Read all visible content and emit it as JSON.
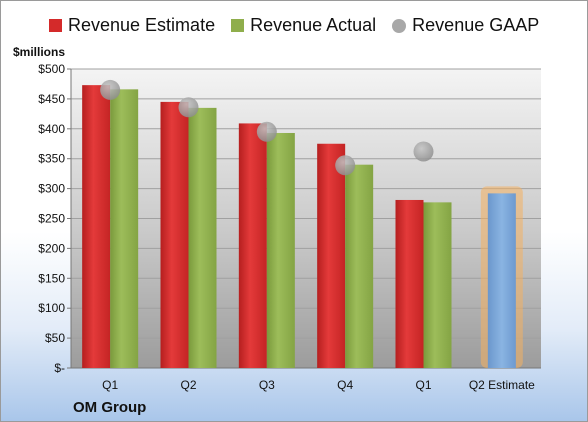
{
  "chart_data": {
    "type": "bar",
    "categories": [
      "Q1",
      "Q2",
      "Q3",
      "Q4",
      "Q1",
      "Q2 Estimate"
    ],
    "series": [
      {
        "name": "Revenue Estimate",
        "type": "bar",
        "values": [
          473,
          445,
          409,
          375,
          281,
          null
        ],
        "color": "#d42a2a"
      },
      {
        "name": "Revenue Actual",
        "type": "bar",
        "values": [
          466,
          435,
          393,
          340,
          277,
          292
        ],
        "color": "#8fae4c"
      },
      {
        "name": "Revenue GAAP",
        "type": "scatter",
        "values": [
          465,
          436,
          395,
          339,
          362,
          null
        ],
        "color": "#a8a8a8"
      }
    ],
    "highlight": {
      "category": "Q2 Estimate",
      "value": 292,
      "color": "#7aa6d6",
      "glow": "#f4b060"
    },
    "ylabel": "$millions",
    "ylim": [
      0,
      500
    ],
    "yticks": [
      0,
      50,
      100,
      150,
      200,
      250,
      300,
      350,
      400,
      450,
      500
    ],
    "ytick_labels": [
      "$-",
      "$50",
      "$100",
      "$150",
      "$200",
      "$250",
      "$300",
      "$350",
      "$400",
      "$450",
      "$500"
    ],
    "grid": true,
    "legend_position": "top",
    "company": "OM Group"
  }
}
